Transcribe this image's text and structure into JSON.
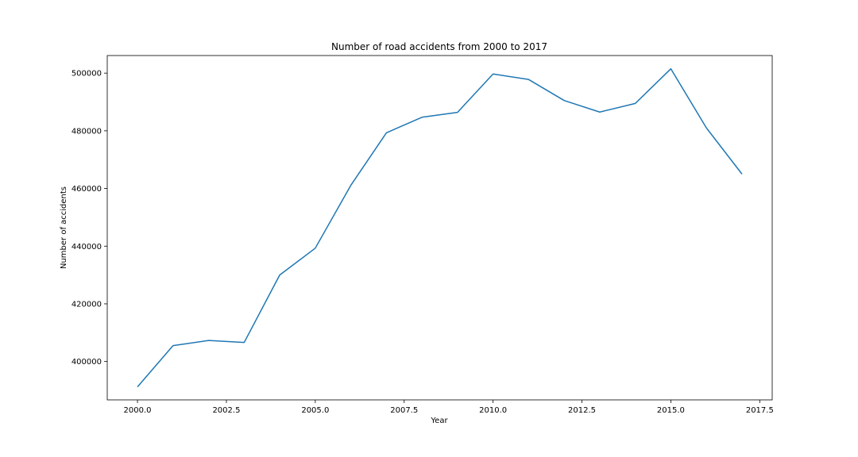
{
  "chart_data": {
    "type": "line",
    "title": "Number of road accidents from 2000 to 2017",
    "xlabel": "Year",
    "ylabel": "Number of accidents",
    "xlim": [
      1999.15,
      2017.85
    ],
    "ylim": [
      386700,
      506100
    ],
    "xticks": [
      2000.0,
      2002.5,
      2005.0,
      2007.5,
      2010.0,
      2012.5,
      2015.0,
      2017.5
    ],
    "xtick_labels": [
      "2000.0",
      "2002.5",
      "2005.0",
      "2007.5",
      "2010.0",
      "2012.5",
      "2015.0",
      "2017.5"
    ],
    "yticks": [
      400000,
      420000,
      440000,
      460000,
      480000,
      500000
    ],
    "ytick_labels": [
      "400000",
      "420000",
      "440000",
      "460000",
      "480000",
      "500000"
    ],
    "grid": false,
    "series": [
      {
        "color": "#1f77b4",
        "x": [
          2000,
          2001,
          2002,
          2003,
          2004,
          2005,
          2006,
          2007,
          2008,
          2009,
          2010,
          2011,
          2012,
          2013,
          2014,
          2015,
          2016,
          2017
        ],
        "y": [
          391200,
          405500,
          407300,
          406600,
          430000,
          439300,
          461100,
          479300,
          484700,
          486400,
          499700,
          497800,
          490500,
          486500,
          489500,
          501500,
          481000,
          465000
        ]
      }
    ]
  }
}
